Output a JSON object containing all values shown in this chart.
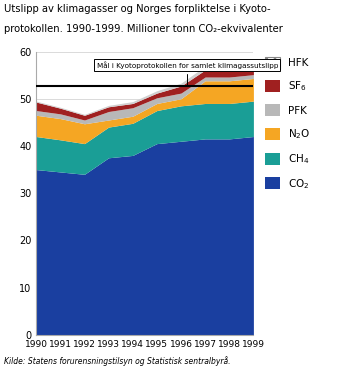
{
  "years": [
    1990,
    1991,
    1992,
    1993,
    1994,
    1995,
    1996,
    1997,
    1998,
    1999
  ],
  "CO2": [
    35.0,
    34.5,
    34.0,
    37.5,
    38.0,
    40.5,
    41.0,
    41.5,
    41.5,
    42.0
  ],
  "CH4": [
    7.0,
    6.8,
    6.5,
    6.5,
    6.8,
    7.0,
    7.5,
    7.5,
    7.5,
    7.5
  ],
  "N2O": [
    4.5,
    4.5,
    4.2,
    1.5,
    1.5,
    1.5,
    1.5,
    4.8,
    4.8,
    4.8
  ],
  "PFK": [
    1.0,
    1.0,
    0.8,
    1.8,
    1.8,
    1.2,
    1.2,
    0.8,
    0.8,
    0.8
  ],
  "SF6": [
    1.8,
    1.2,
    1.0,
    1.0,
    0.9,
    1.0,
    1.5,
    1.5,
    1.5,
    1.5
  ],
  "HFK": [
    0.2,
    0.2,
    0.2,
    0.3,
    0.4,
    0.5,
    0.6,
    0.8,
    1.0,
    1.2
  ],
  "kyoto_line": 52.7,
  "kyoto_annotation": "Mål i Kyotoprotokollen for samlet klimagassutslipp",
  "source": "Kilde: Statens forurensningstilsyn og Statistisk sentralbyrå.",
  "co2_color": "#1a3fa0",
  "ch4_color": "#1a9e96",
  "n2o_color": "#f5a623",
  "pfk_color": "#b8b8b8",
  "sf6_color": "#a02020",
  "hfk_color": "#d0d0d0",
  "ylim": [
    0,
    60
  ],
  "yticks": [
    0,
    10,
    20,
    30,
    40,
    50,
    60
  ],
  "title_line1": "Utslipp av klimagasser og Norges forpliktelse i Kyoto-",
  "title_line2": "protokollen. 1990-1999. Millioner tonn CO₂-ekvivalenter"
}
